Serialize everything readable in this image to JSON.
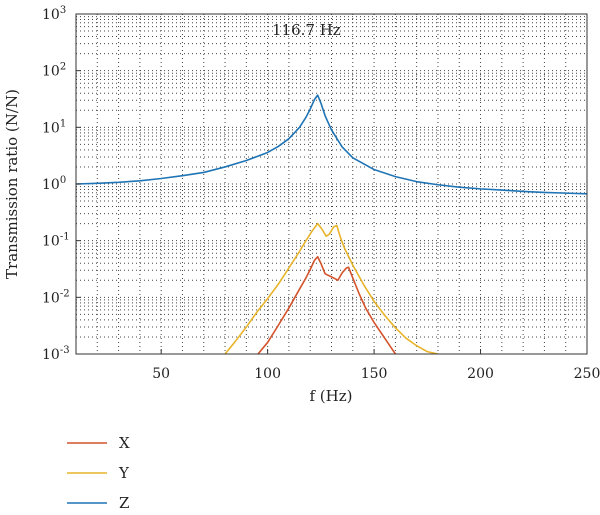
{
  "chart_data": {
    "type": "line",
    "title": "",
    "annotation": "116.7 Hz",
    "xlabel": "f (Hz)",
    "ylabel": "Transmission ratio (N/N)",
    "xlim": [
      10,
      250
    ],
    "ylim": [
      0.001,
      1000
    ],
    "yscale": "log",
    "grid": true,
    "legend_position": "below",
    "x_ticks": [
      50,
      100,
      150,
      200,
      250
    ],
    "y_ticks": [
      {
        "base": "10",
        "exp": "-3",
        "value": 0.001
      },
      {
        "base": "10",
        "exp": "-2",
        "value": 0.01
      },
      {
        "base": "10",
        "exp": "-1",
        "value": 0.1
      },
      {
        "base": "10",
        "exp": "0",
        "value": 1
      },
      {
        "base": "10",
        "exp": "1",
        "value": 10
      },
      {
        "base": "10",
        "exp": "2",
        "value": 100
      },
      {
        "base": "10",
        "exp": "3",
        "value": 1000
      }
    ],
    "series": [
      {
        "name": "X",
        "color": "#d4532b",
        "points": [
          [
            90,
            0.0005
          ],
          [
            95,
            0.00095
          ],
          [
            100,
            0.0016
          ],
          [
            105,
            0.0032
          ],
          [
            110,
            0.0065
          ],
          [
            115,
            0.014
          ],
          [
            118,
            0.022
          ],
          [
            120,
            0.031
          ],
          [
            122,
            0.045
          ],
          [
            123.5,
            0.052
          ],
          [
            125,
            0.04
          ],
          [
            127,
            0.026
          ],
          [
            130,
            0.023
          ],
          [
            132,
            0.021
          ],
          [
            133,
            0.02
          ],
          [
            135,
            0.027
          ],
          [
            137,
            0.033
          ],
          [
            138,
            0.034
          ],
          [
            140,
            0.022
          ],
          [
            143,
            0.0115
          ],
          [
            146,
            0.0065
          ],
          [
            150,
            0.0036
          ],
          [
            155,
            0.0019
          ],
          [
            160,
            0.001
          ],
          [
            165,
            0.0006
          ]
        ]
      },
      {
        "name": "Y",
        "color": "#e8b42a",
        "points": [
          [
            75,
            0.0006
          ],
          [
            80,
            0.001
          ],
          [
            85,
            0.0017
          ],
          [
            90,
            0.003
          ],
          [
            95,
            0.0055
          ],
          [
            100,
            0.0095
          ],
          [
            105,
            0.017
          ],
          [
            110,
            0.033
          ],
          [
            115,
            0.065
          ],
          [
            118,
            0.1
          ],
          [
            121,
            0.15
          ],
          [
            123.5,
            0.2
          ],
          [
            125.5,
            0.16
          ],
          [
            127.5,
            0.12
          ],
          [
            129,
            0.13
          ],
          [
            131,
            0.175
          ],
          [
            132.5,
            0.185
          ],
          [
            134,
            0.12
          ],
          [
            136,
            0.075
          ],
          [
            140,
            0.037
          ],
          [
            145,
            0.017
          ],
          [
            150,
            0.0085
          ],
          [
            155,
            0.0048
          ],
          [
            160,
            0.0029
          ],
          [
            165,
            0.0019
          ],
          [
            170,
            0.0014
          ],
          [
            175,
            0.0011
          ],
          [
            180,
            0.001
          ],
          [
            185,
            0.0008
          ]
        ]
      },
      {
        "name": "Z",
        "color": "#1f74b5",
        "points": [
          [
            10,
            1.0
          ],
          [
            20,
            1.03
          ],
          [
            30,
            1.07
          ],
          [
            40,
            1.14
          ],
          [
            50,
            1.25
          ],
          [
            60,
            1.4
          ],
          [
            70,
            1.6
          ],
          [
            80,
            2.0
          ],
          [
            90,
            2.6
          ],
          [
            100,
            3.6
          ],
          [
            105,
            4.6
          ],
          [
            110,
            6.3
          ],
          [
            115,
            10
          ],
          [
            118,
            15
          ],
          [
            120,
            21
          ],
          [
            122,
            31
          ],
          [
            123.5,
            37
          ],
          [
            125,
            27
          ],
          [
            127,
            16
          ],
          [
            130,
            9
          ],
          [
            135,
            4.5
          ],
          [
            140,
            2.9
          ],
          [
            150,
            1.8
          ],
          [
            160,
            1.35
          ],
          [
            170,
            1.1
          ],
          [
            180,
            0.97
          ],
          [
            190,
            0.88
          ],
          [
            200,
            0.82
          ],
          [
            210,
            0.78
          ],
          [
            220,
            0.74
          ],
          [
            230,
            0.71
          ],
          [
            240,
            0.69
          ],
          [
            250,
            0.67
          ]
        ]
      }
    ]
  }
}
